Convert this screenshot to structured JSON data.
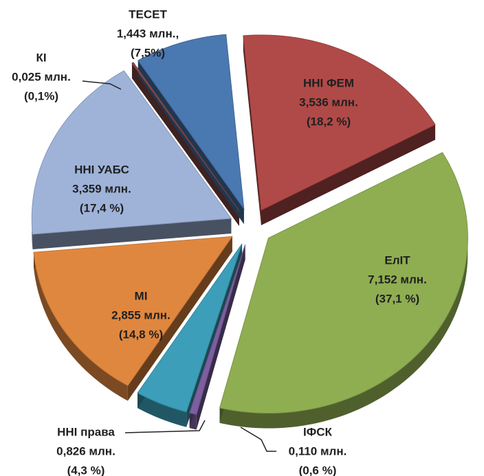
{
  "chart_data": {
    "type": "pie",
    "categories": [
      "ННІ ФЕМ",
      "ЕлІТ",
      "ІФСК",
      "ННІ права",
      "МІ",
      "ННІ УАБС",
      "КІ",
      "ТЕСЕТ"
    ],
    "values": [
      3.536,
      7.152,
      0.11,
      0.826,
      2.855,
      3.359,
      0.025,
      1.443
    ],
    "value_labels": [
      "3,536 млн.",
      "7,152 млн.",
      "0,110 млн.",
      "0,826 млн.",
      "2,855 млн.",
      "3,359 млн.",
      "0,025 млн.",
      "1,443 млн.,"
    ],
    "percents": [
      18.2,
      37.1,
      0.6,
      4.3,
      14.8,
      17.4,
      0.1,
      7.5
    ],
    "percent_labels": [
      "(18,2 %)",
      "(37,1 %)",
      "(0,6 %)",
      "(4,3 %)",
      "(14,8 %)",
      "(17,4 %)",
      "(0,1%)",
      "(7,5%)"
    ],
    "colors": [
      "#b04a48",
      "#8fae52",
      "#7d5fa0",
      "#3c9eb8",
      "#e0873f",
      "#9fb3d9",
      "#8a4c4c",
      "#4a78b0"
    ]
  }
}
